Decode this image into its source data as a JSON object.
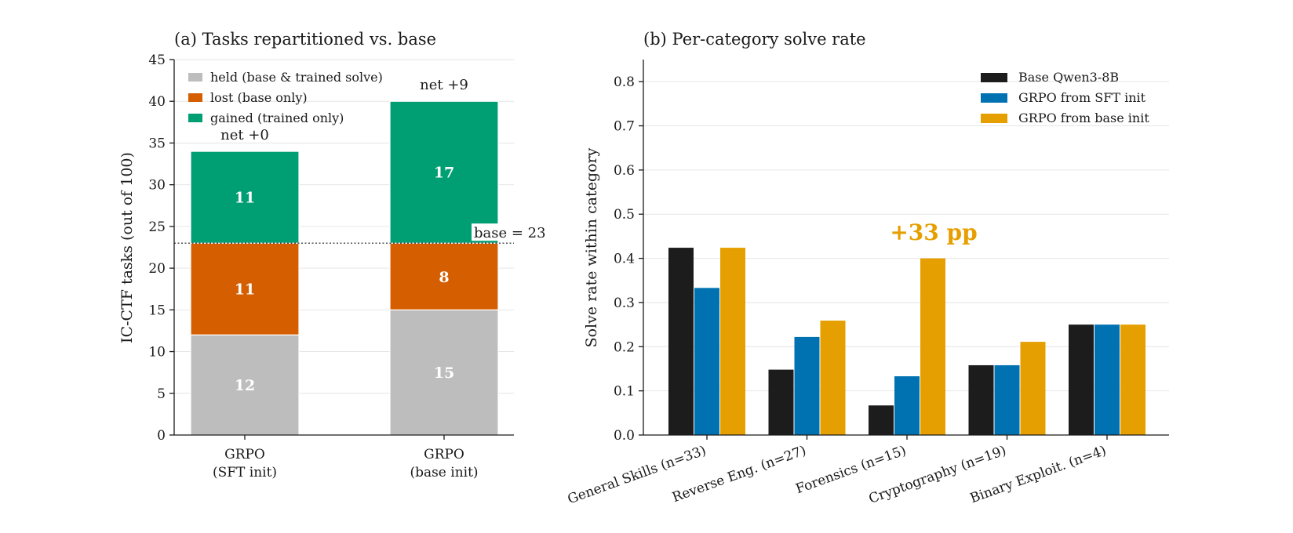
{
  "chart_data": [
    {
      "type": "bar",
      "stacked": true,
      "title": "(a) Tasks repartitioned vs. base",
      "ylabel": "IC-CTF tasks (out of 100)",
      "ylim": [
        0,
        45
      ],
      "yticks": [
        0,
        5,
        10,
        15,
        20,
        25,
        30,
        35,
        40,
        45
      ],
      "categories": [
        [
          "GRPO",
          "(SFT init)"
        ],
        [
          "GRPO",
          "(base init)"
        ]
      ],
      "series": [
        {
          "name": "held (base & trained solve)",
          "color": "#bdbdbd",
          "values": [
            12,
            15
          ]
        },
        {
          "name": "lost (base only)",
          "color": "#d55e00",
          "values": [
            11,
            8
          ]
        },
        {
          "name": "gained (trained only)",
          "color": "#009e73",
          "values": [
            11,
            17
          ]
        }
      ],
      "segment_labels": [
        [
          "12",
          "11",
          "11"
        ],
        [
          "15",
          "8",
          "17"
        ]
      ],
      "net_labels": [
        "net +0",
        "net +9"
      ],
      "reference_line": {
        "value": 23,
        "label": "base = 23"
      },
      "legend": "top-left",
      "grid": "y"
    },
    {
      "type": "bar",
      "title": "(b) Per-category solve rate",
      "ylabel": "Solve rate within category",
      "ylim": [
        0,
        0.85
      ],
      "yticks": [
        "0.0",
        "0.1",
        "0.2",
        "0.3",
        "0.4",
        "0.5",
        "0.6",
        "0.7",
        "0.8"
      ],
      "categories": [
        "General Skills (n=33)",
        "Reverse Eng. (n=27)",
        "Forensics (n=15)",
        "Cryptography (n=19)",
        "Binary Exploit. (n=4)"
      ],
      "series": [
        {
          "name": "Base Qwen3-8B",
          "color": "#1c1c1c",
          "values": [
            0.424,
            0.148,
            0.067,
            0.158,
            0.25
          ]
        },
        {
          "name": "GRPO from SFT init",
          "color": "#0072b2",
          "values": [
            0.333,
            0.222,
            0.133,
            0.158,
            0.25
          ]
        },
        {
          "name": "GRPO from base init",
          "color": "#e69f00",
          "values": [
            0.424,
            0.259,
            0.4,
            0.211,
            0.25
          ]
        }
      ],
      "annotation": {
        "text": "+33 pp",
        "category_index": 2,
        "color": "#e69f00"
      },
      "legend": "top-right",
      "grid": "y"
    }
  ]
}
